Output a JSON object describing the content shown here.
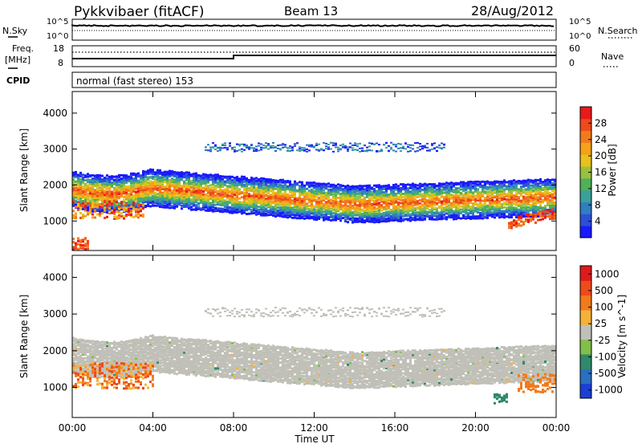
{
  "header": {
    "station": "Pykkvibaer (fitACF)",
    "beam": "Beam 13",
    "date": "28/Aug/2012"
  },
  "strip_nsky": {
    "left_label": "N.Sky",
    "right_label": "N.Search",
    "left_ticks": [
      "10^5",
      "10^0"
    ],
    "right_ticks": [
      "10^5",
      "10^0"
    ]
  },
  "strip_freq": {
    "left_label_1": "Freq.",
    "left_label_2": "[MHz]",
    "right_label": "Nave",
    "left_ticks": [
      "18",
      "8"
    ],
    "right_ticks": [
      "60",
      "0"
    ]
  },
  "strip_cpid": {
    "label": "CPID",
    "text": "normal (fast stereo) 153"
  },
  "x_axis": {
    "label": "Time UT",
    "ticks": [
      "00:00",
      "04:00",
      "08:00",
      "12:00",
      "16:00",
      "20:00",
      "00:00"
    ]
  },
  "chart_data": [
    {
      "type": "heatmap",
      "name": "power",
      "ylabel": "Slant Range [km]",
      "y_ticks": [
        1000,
        2000,
        3000,
        4000
      ],
      "ylim": [
        180,
        4600
      ],
      "x_ticks": [
        "00:00",
        "04:00",
        "08:00",
        "12:00",
        "16:00",
        "20:00",
        "00:00"
      ],
      "colorbar": {
        "label": "Power [dB]",
        "ticks": [
          4,
          8,
          12,
          16,
          20,
          24,
          28
        ],
        "colors": [
          "#1a1aff",
          "#2d4fd6",
          "#2f7ec0",
          "#3aa09a",
          "#4fb058",
          "#98c13e",
          "#e8c21a",
          "#f5a11a",
          "#f27a1a",
          "#ee4a1a",
          "#e81a1a"
        ]
      },
      "bands": [
        {
          "desc": "main echo band",
          "t_start": 0.0,
          "t_end": 24.0,
          "range_start_km": 1900,
          "range_mid_km": 1500,
          "range_end_km": 1700
        },
        {
          "desc": "upper echo band",
          "t_start": 6.5,
          "t_end": 18.5,
          "range_km": 3050
        }
      ]
    },
    {
      "type": "heatmap",
      "name": "velocity",
      "ylabel": "Slant Range [km]",
      "y_ticks": [
        1000,
        2000,
        3000,
        4000
      ],
      "ylim": [
        180,
        4600
      ],
      "x_ticks": [
        "00:00",
        "04:00",
        "08:00",
        "12:00",
        "16:00",
        "20:00",
        "00:00"
      ],
      "colorbar": {
        "label": "Velocity [m s^-1]",
        "ticks": [
          1000,
          500,
          100,
          25,
          -25,
          -100,
          -500,
          -1000
        ],
        "colors": [
          "#1a3fd6",
          "#2a6fc0",
          "#2f8a6a",
          "#7fbf4a",
          "#c0c0b8",
          "#f5b23a",
          "#f27a1a",
          "#ee4a1a",
          "#e01a1a"
        ]
      }
    }
  ]
}
